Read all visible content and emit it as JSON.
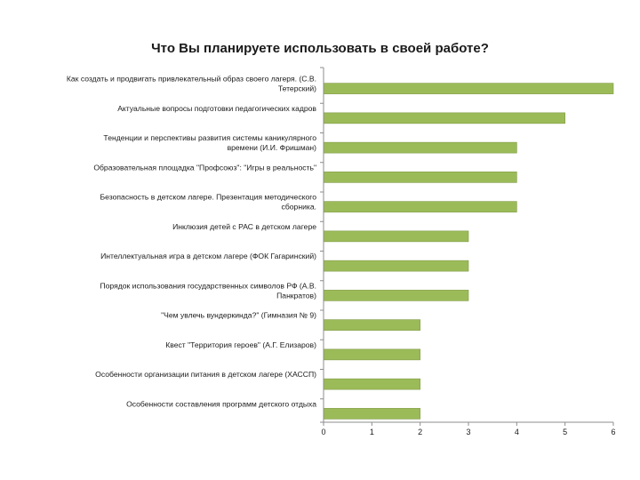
{
  "chart_data": {
    "type": "bar",
    "orientation": "horizontal",
    "title": "Что Вы планируете использовать в своей работе?",
    "categories": [
      "Как создать и продвигать привлекательный образ своего лагеря. (С.В. Тетерский)",
      "Актуальные вопросы подготовки педагогических кадров",
      "Тенденции и перспективы развития системы каникулярного времени (И.И. Фришман)",
      "Образовательная площадка \"Профсоюз\": \"Игры в реальность\"",
      "Безопасность в детском лагере. Презентация методического сборника.",
      "Инклюзия детей с РАС в детском лагере",
      "Интеллектуальная игра в детском лагере (ФОК Гагаринский)",
      "Порядок использования государственных символов РФ (А.В. Панкратов)",
      "\"Чем увлечь вундеркинда?\" (Гимназия № 9)",
      "Квест \"Территория героев\" (А.Г. Елизаров)",
      "Особенности организации питания в детском лагере (ХАССП)",
      "Особенности составления программ детского отдыха"
    ],
    "category_label_lines": [
      [
        "Как создать и продвигать привлекательный образ своего лагеря. (С.В.",
        "Тетерский)"
      ],
      [
        "Актуальные вопросы подготовки педагогических кадров"
      ],
      [
        "Тенденции и перспективы развития системы каникулярного",
        "времени (И.И. Фришман)"
      ],
      [
        "Образовательная площадка \"Профсоюз\": \"Игры в реальность\""
      ],
      [
        "Безопасность в детском лагере. Презентация методического",
        "сборника."
      ],
      [
        "Инклюзия детей с РАС в детском лагере"
      ],
      [
        "Интеллектуальная игра в детском лагере (ФОК Гагаринский)"
      ],
      [
        "Порядок использования государственных символов РФ (А.В.",
        "Панкратов)"
      ],
      [
        "\"Чем увлечь вундеркинда?\" (Гимназия № 9)"
      ],
      [
        "Квест \"Территория героев\" (А.Г. Елизаров)"
      ],
      [
        "Особенности организации питания в детском лагере (ХАССП)"
      ],
      [
        "Особенности составления программ детского отдыха"
      ]
    ],
    "values": [
      6,
      5,
      4,
      4,
      4,
      3,
      3,
      3,
      2,
      2,
      2,
      2
    ],
    "xlim": [
      0,
      6
    ],
    "xticks": [
      "0",
      "1",
      "2",
      "3",
      "4",
      "5",
      "6"
    ],
    "grid": false,
    "legend": "none",
    "bar_color": "#9bbb59",
    "bar_edge_color": "#7f9a43",
    "xlabel": "",
    "ylabel": ""
  }
}
